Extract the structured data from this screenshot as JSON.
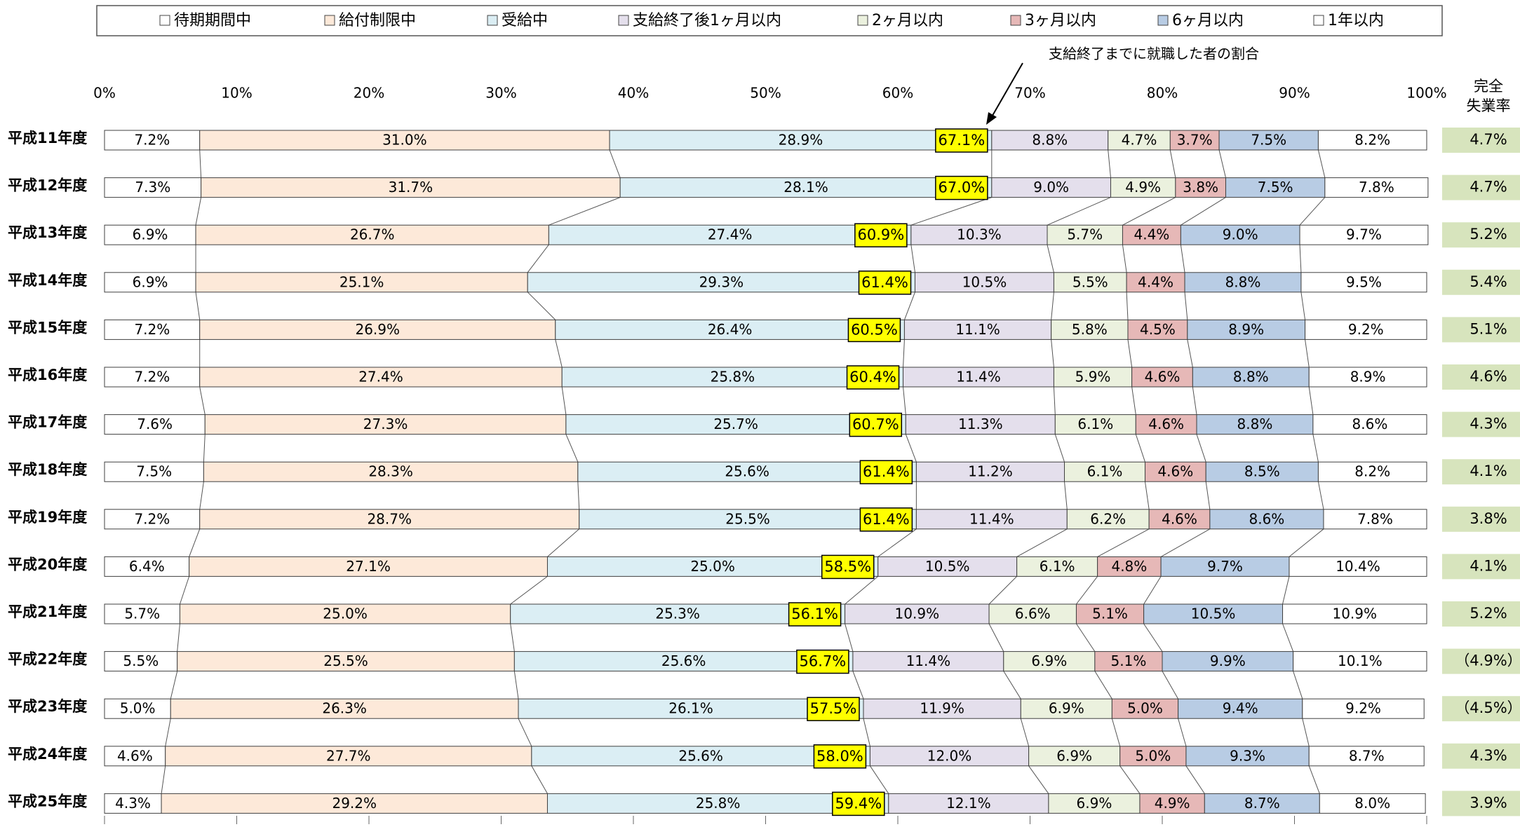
{
  "chart_data": {
    "type": "stacked-bar-100",
    "annotation": "支給終了までに就職した者の割合",
    "rate_title": [
      "完全",
      "失業率"
    ],
    "categories": [
      "平成11年度",
      "平成12年度",
      "平成13年度",
      "平成14年度",
      "平成15年度",
      "平成16年度",
      "平成17年度",
      "平成18年度",
      "平成19年度",
      "平成20年度",
      "平成21年度",
      "平成22年度",
      "平成23年度",
      "平成24年度",
      "平成25年度"
    ],
    "xlim": [
      0,
      100
    ],
    "xticks": [
      {
        "value": 0,
        "label": "0%"
      },
      {
        "value": 10,
        "label": "10%"
      },
      {
        "value": 20,
        "label": "20%"
      },
      {
        "value": 30,
        "label": "30%"
      },
      {
        "value": 40,
        "label": "40%"
      },
      {
        "value": 50,
        "label": "50%"
      },
      {
        "value": 60,
        "label": "60%"
      },
      {
        "value": 70,
        "label": "70%"
      },
      {
        "value": 80,
        "label": "80%"
      },
      {
        "value": 90,
        "label": "90%"
      },
      {
        "value": 100,
        "label": "100%"
      }
    ],
    "series": [
      {
        "name": "待期期間中",
        "color": "#ffffff",
        "values": [
          7.2,
          7.3,
          6.9,
          6.9,
          7.2,
          7.2,
          7.6,
          7.5,
          7.2,
          6.4,
          5.7,
          5.5,
          5.0,
          4.6,
          4.3
        ],
        "value_labels": [
          "7.2%",
          "7.3%",
          "6.9%",
          "6.9%",
          "7.2%",
          "7.2%",
          "7.6%",
          "7.5%",
          "7.2%",
          "6.4%",
          "5.7%",
          "5.5%",
          "5.0%",
          "4.6%",
          "4.3%"
        ]
      },
      {
        "name": "給付制限中",
        "color": "#fde9d9",
        "values": [
          31.0,
          31.7,
          26.7,
          25.1,
          26.9,
          27.4,
          27.3,
          28.3,
          28.7,
          27.1,
          25.0,
          25.5,
          26.3,
          27.7,
          29.2
        ],
        "value_labels": [
          "31.0%",
          "31.7%",
          "26.7%",
          "25.1%",
          "26.9%",
          "27.4%",
          "27.3%",
          "28.3%",
          "28.7%",
          "27.1%",
          "25.0%",
          "25.5%",
          "26.3%",
          "27.7%",
          "29.2%"
        ]
      },
      {
        "name": "受給中",
        "color": "#dbeef4",
        "values": [
          28.9,
          28.1,
          27.4,
          29.3,
          26.4,
          25.8,
          25.7,
          25.6,
          25.5,
          25.0,
          25.3,
          25.6,
          26.1,
          25.6,
          25.8
        ],
        "value_labels": [
          "28.9%",
          "28.1%",
          "27.4%",
          "29.3%",
          "26.4%",
          "25.8%",
          "25.7%",
          "25.6%",
          "25.5%",
          "25.0%",
          "25.3%",
          "25.6%",
          "26.1%",
          "25.6%",
          "25.8%"
        ]
      },
      {
        "name": "支給終了後1ヶ月以内",
        "color": "#e4dfec",
        "values": [
          8.8,
          9.0,
          10.3,
          10.5,
          11.1,
          11.4,
          11.3,
          11.2,
          11.4,
          10.5,
          10.9,
          11.4,
          11.9,
          12.0,
          12.1
        ],
        "value_labels": [
          "8.8%",
          "9.0%",
          "10.3%",
          "10.5%",
          "11.1%",
          "11.4%",
          "11.3%",
          "11.2%",
          "11.4%",
          "10.5%",
          "10.9%",
          "11.4%",
          "11.9%",
          "12.0%",
          "12.1%"
        ]
      },
      {
        "name": "2ヶ月以内",
        "color": "#ebf1de",
        "values": [
          4.7,
          4.9,
          5.7,
          5.5,
          5.8,
          5.9,
          6.1,
          6.1,
          6.2,
          6.1,
          6.6,
          6.9,
          6.9,
          6.9,
          6.9
        ],
        "value_labels": [
          "4.7%",
          "4.9%",
          "5.7%",
          "5.5%",
          "5.8%",
          "5.9%",
          "6.1%",
          "6.1%",
          "6.2%",
          "6.1%",
          "6.6%",
          "6.9%",
          "6.9%",
          "6.9%",
          "6.9%"
        ]
      },
      {
        "name": "3ヶ月以内",
        "color": "#e6b8b7",
        "values": [
          3.7,
          3.8,
          4.4,
          4.4,
          4.5,
          4.6,
          4.6,
          4.6,
          4.6,
          4.8,
          5.1,
          5.1,
          5.0,
          5.0,
          4.9
        ],
        "value_labels": [
          "3.7%",
          "3.8%",
          "4.4%",
          "4.4%",
          "4.5%",
          "4.6%",
          "4.6%",
          "4.6%",
          "4.6%",
          "4.8%",
          "5.1%",
          "5.1%",
          "5.0%",
          "5.0%",
          "4.9%"
        ]
      },
      {
        "name": "6ヶ月以内",
        "color": "#b8cce4",
        "values": [
          7.5,
          7.5,
          9.0,
          8.8,
          8.9,
          8.8,
          8.8,
          8.5,
          8.6,
          9.7,
          10.5,
          9.9,
          9.4,
          9.3,
          8.7
        ],
        "value_labels": [
          "7.5%",
          "7.5%",
          "9.0%",
          "8.8%",
          "8.9%",
          "8.8%",
          "8.8%",
          "8.5%",
          "8.6%",
          "9.7%",
          "10.5%",
          "9.9%",
          "9.4%",
          "9.3%",
          "8.7%"
        ]
      },
      {
        "name": "1年以内",
        "color": "#ffffff",
        "values": [
          8.2,
          7.8,
          9.7,
          9.5,
          9.2,
          8.9,
          8.6,
          8.2,
          7.8,
          10.4,
          10.9,
          10.1,
          9.2,
          8.7,
          8.0
        ],
        "value_labels": [
          "8.2%",
          "7.8%",
          "9.7%",
          "9.5%",
          "9.2%",
          "8.9%",
          "8.6%",
          "8.2%",
          "7.8%",
          "10.4%",
          "10.9%",
          "10.1%",
          "9.2%",
          "8.7%",
          "8.0%"
        ]
      }
    ],
    "totals": {
      "color": "#ffff00",
      "values": [
        67.1,
        67.0,
        60.9,
        61.4,
        60.5,
        60.4,
        60.7,
        61.4,
        61.4,
        58.5,
        56.1,
        56.7,
        57.5,
        58.0,
        59.4
      ],
      "value_labels": [
        "67.1%",
        "67.0%",
        "60.9%",
        "61.4%",
        "60.5%",
        "60.4%",
        "60.7%",
        "61.4%",
        "61.4%",
        "58.5%",
        "56.1%",
        "56.7%",
        "57.5%",
        "58.0%",
        "59.4%"
      ]
    },
    "rate": {
      "color": "#d7e4bd",
      "values": [
        4.7,
        4.7,
        5.2,
        5.4,
        5.1,
        4.6,
        4.3,
        4.1,
        3.8,
        4.1,
        5.2,
        4.9,
        4.5,
        4.3,
        3.9
      ],
      "value_labels": [
        "4.7%",
        "4.7%",
        "5.2%",
        "5.4%",
        "5.1%",
        "4.6%",
        "4.3%",
        "4.1%",
        "3.8%",
        "4.1%",
        "5.2%",
        "（4.9%）",
        "（4.5%）",
        "4.3%",
        "3.9%"
      ]
    }
  }
}
